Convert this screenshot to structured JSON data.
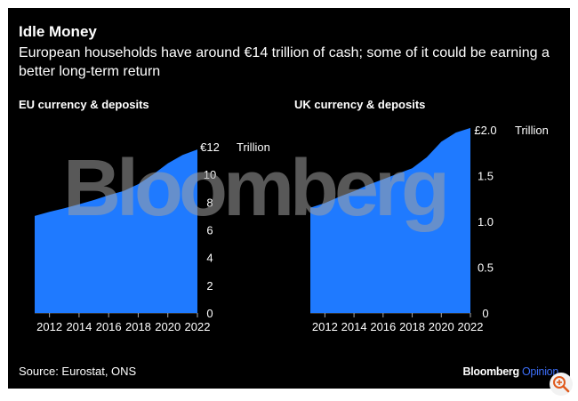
{
  "header": {
    "title": "Idle Money",
    "subtitle": "European households have around €14 trillion of cash; some of it could be earning a better long-term return"
  },
  "footer": {
    "source": "Source: Eurostat, ONS",
    "brand_main": "Bloomberg",
    "brand_sub": "Opinion"
  },
  "watermark": "Bloomberg",
  "colors": {
    "fill": "#1f7aff",
    "background": "#000000",
    "text": "#ffffff",
    "axis": "#aaaaaa"
  },
  "chart_data": [
    {
      "type": "area",
      "title": "EU currency & deposits",
      "unit_label": "Trillion",
      "x": [
        2011,
        2012,
        2013,
        2014,
        2015,
        2016,
        2017,
        2018,
        2019,
        2020,
        2021,
        2022
      ],
      "values": [
        7.0,
        7.3,
        7.55,
        7.85,
        8.15,
        8.5,
        8.8,
        9.3,
        10.0,
        10.8,
        11.4,
        11.8
      ],
      "xlim": [
        2011,
        2022
      ],
      "ylim": [
        0,
        12
      ],
      "xticks": [
        "2012",
        "2014",
        "2016",
        "2018",
        "2020",
        "2022"
      ],
      "ytick_values": [
        0,
        2,
        4,
        6,
        8,
        10,
        12
      ],
      "ytick_labels": [
        "0",
        "2",
        "4",
        "6",
        "8",
        "10",
        "€12"
      ],
      "grid": false
    },
    {
      "type": "area",
      "title": "UK currency & deposits",
      "unit_label": "Trillion",
      "x": [
        2011,
        2012,
        2013,
        2014,
        2015,
        2016,
        2017,
        2018,
        2019,
        2020,
        2021,
        2022
      ],
      "values": [
        1.15,
        1.2,
        1.27,
        1.33,
        1.4,
        1.46,
        1.52,
        1.58,
        1.7,
        1.87,
        1.97,
        2.02
      ],
      "xlim": [
        2011,
        2022
      ],
      "ylim": [
        0,
        2.0
      ],
      "xticks": [
        "2012",
        "2014",
        "2016",
        "2018",
        "2020",
        "2022"
      ],
      "ytick_values": [
        0,
        0.5,
        1.0,
        1.5,
        2.0
      ],
      "ytick_labels": [
        "0",
        "0.5",
        "1.0",
        "1.5",
        "£2.0"
      ],
      "grid": false
    }
  ]
}
